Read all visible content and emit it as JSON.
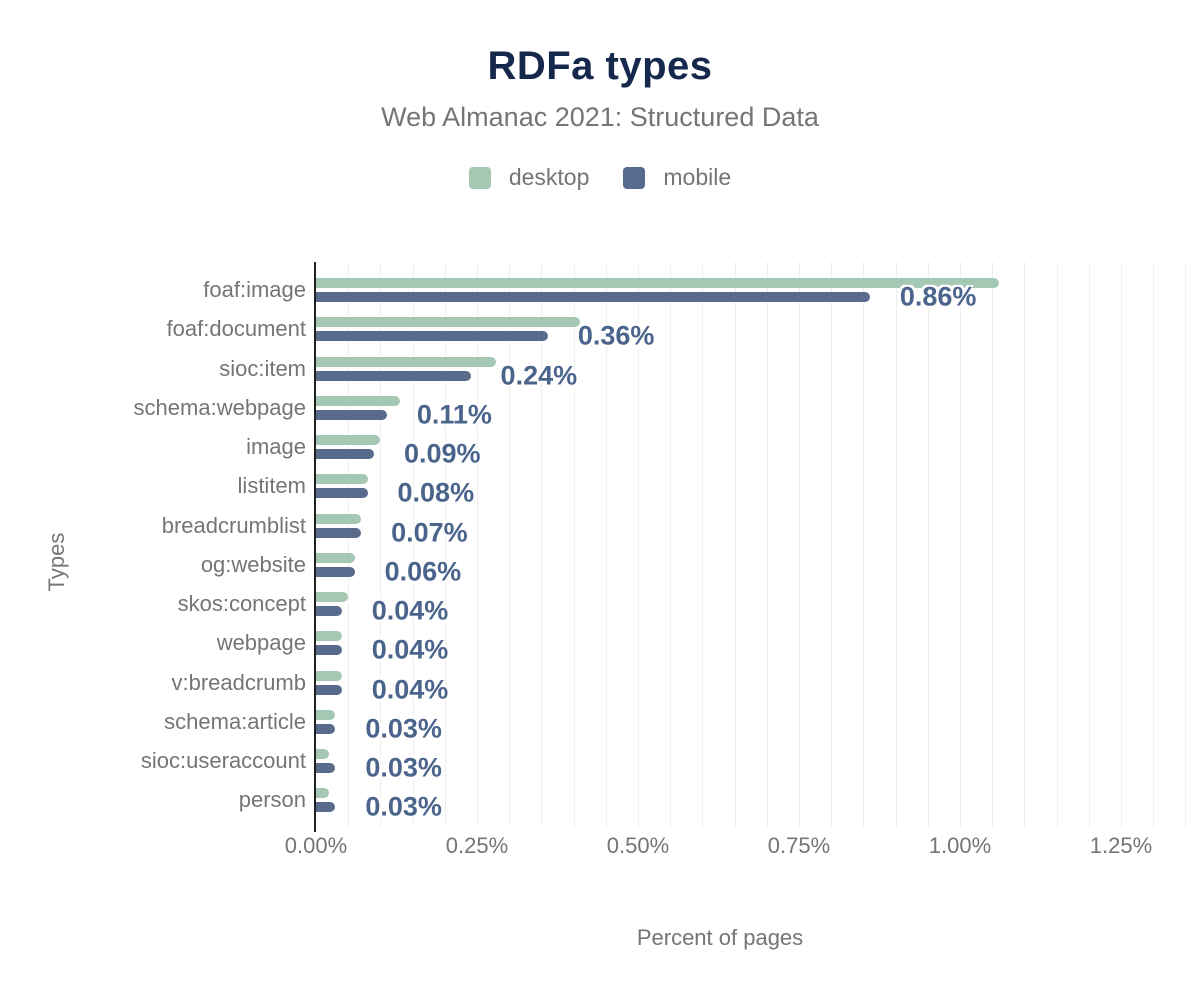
{
  "header": {
    "title": "RDFa types",
    "subtitle": "Web Almanac 2021: Structured Data"
  },
  "legend": {
    "items": [
      {
        "label": "desktop",
        "color": "#a5c8b5"
      },
      {
        "label": "mobile",
        "color": "#596b8c"
      }
    ]
  },
  "axes": {
    "x_title": "Percent of pages",
    "y_title": "Types"
  },
  "colors": {
    "title": "#16294c",
    "subtitle": "#757575",
    "axis_text": "#757575",
    "value_label": "#4a648c",
    "axis_line": "#212121",
    "gridline": "#eeeeee",
    "background": "#ffffff",
    "desktop": "#a5c8b5",
    "mobile": "#596b8c"
  },
  "chart_data": {
    "type": "bar",
    "orientation": "horizontal",
    "title": "RDFa types",
    "subtitle": "Web Almanac 2021: Structured Data",
    "xlabel": "Percent of pages",
    "ylabel": "Types",
    "legend_position": "top",
    "grid": "vertical minor gridlines",
    "grid_step": 0.05,
    "xlim": [
      0,
      1.35
    ],
    "x_ticks": [
      "0.00%",
      "0.25%",
      "0.50%",
      "0.75%",
      "1.00%",
      "1.25%"
    ],
    "categories": [
      "foaf:image",
      "foaf:document",
      "sioc:item",
      "schema:webpage",
      "image",
      "listitem",
      "breadcrumblist",
      "og:website",
      "skos:concept",
      "webpage",
      "v:breadcrumb",
      "schema:article",
      "sioc:useraccount",
      "person"
    ],
    "series": [
      {
        "name": "desktop",
        "color": "#a5c8b5",
        "values": [
          1.06,
          0.41,
          0.28,
          0.13,
          0.1,
          0.08,
          0.07,
          0.06,
          0.05,
          0.04,
          0.04,
          0.03,
          0.02,
          0.02
        ]
      },
      {
        "name": "mobile",
        "color": "#596b8c",
        "values": [
          0.86,
          0.36,
          0.24,
          0.11,
          0.09,
          0.08,
          0.07,
          0.06,
          0.04,
          0.04,
          0.04,
          0.03,
          0.03,
          0.03
        ]
      }
    ],
    "data_labels": [
      "0.86%",
      "0.36%",
      "0.24%",
      "0.11%",
      "0.09%",
      "0.08%",
      "0.07%",
      "0.06%",
      "0.04%",
      "0.04%",
      "0.04%",
      "0.03%",
      "0.03%",
      "0.03%"
    ]
  }
}
